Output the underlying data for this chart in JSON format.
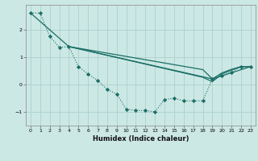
{
  "xlabel": "Humidex (Indice chaleur)",
  "background_color": "#cce8e5",
  "grid_color": "#afd4d0",
  "line_color": "#1a6e65",
  "xlim": [
    -0.5,
    23.5
  ],
  "ylim": [
    -1.5,
    2.9
  ],
  "yticks": [
    -1,
    0,
    1,
    2
  ],
  "xticks": [
    0,
    1,
    2,
    3,
    4,
    5,
    6,
    7,
    8,
    9,
    10,
    11,
    12,
    13,
    14,
    15,
    16,
    17,
    18,
    19,
    20,
    21,
    22,
    23
  ],
  "line1_x": [
    0,
    1,
    2,
    3,
    4,
    5,
    6,
    7,
    8,
    9,
    10,
    11,
    12,
    13,
    14,
    15,
    16,
    17,
    18,
    19,
    20,
    21,
    22,
    23
  ],
  "line1_y": [
    2.6,
    2.6,
    1.75,
    1.35,
    1.38,
    0.65,
    0.38,
    0.15,
    -0.18,
    -0.35,
    -0.9,
    -0.95,
    -0.95,
    -1.0,
    -0.55,
    -0.5,
    -0.6,
    -0.6,
    -0.6,
    0.2,
    0.32,
    0.45,
    0.65,
    0.65
  ],
  "line2_x": [
    0,
    4,
    19,
    23
  ],
  "line2_y": [
    2.6,
    1.38,
    0.2,
    0.65
  ],
  "line3_x": [
    4,
    6,
    8,
    10,
    12,
    14,
    16,
    18,
    19,
    20,
    21,
    22,
    23
  ],
  "line3_y": [
    1.38,
    1.26,
    1.14,
    1.02,
    0.9,
    0.78,
    0.66,
    0.54,
    0.2,
    0.42,
    0.55,
    0.65,
    0.65
  ],
  "line4_x": [
    4,
    6,
    8,
    10,
    12,
    14,
    16,
    18,
    19,
    20,
    21,
    22,
    23
  ],
  "line4_y": [
    1.38,
    1.22,
    1.06,
    0.9,
    0.74,
    0.58,
    0.42,
    0.26,
    0.1,
    0.38,
    0.52,
    0.65,
    0.65
  ]
}
